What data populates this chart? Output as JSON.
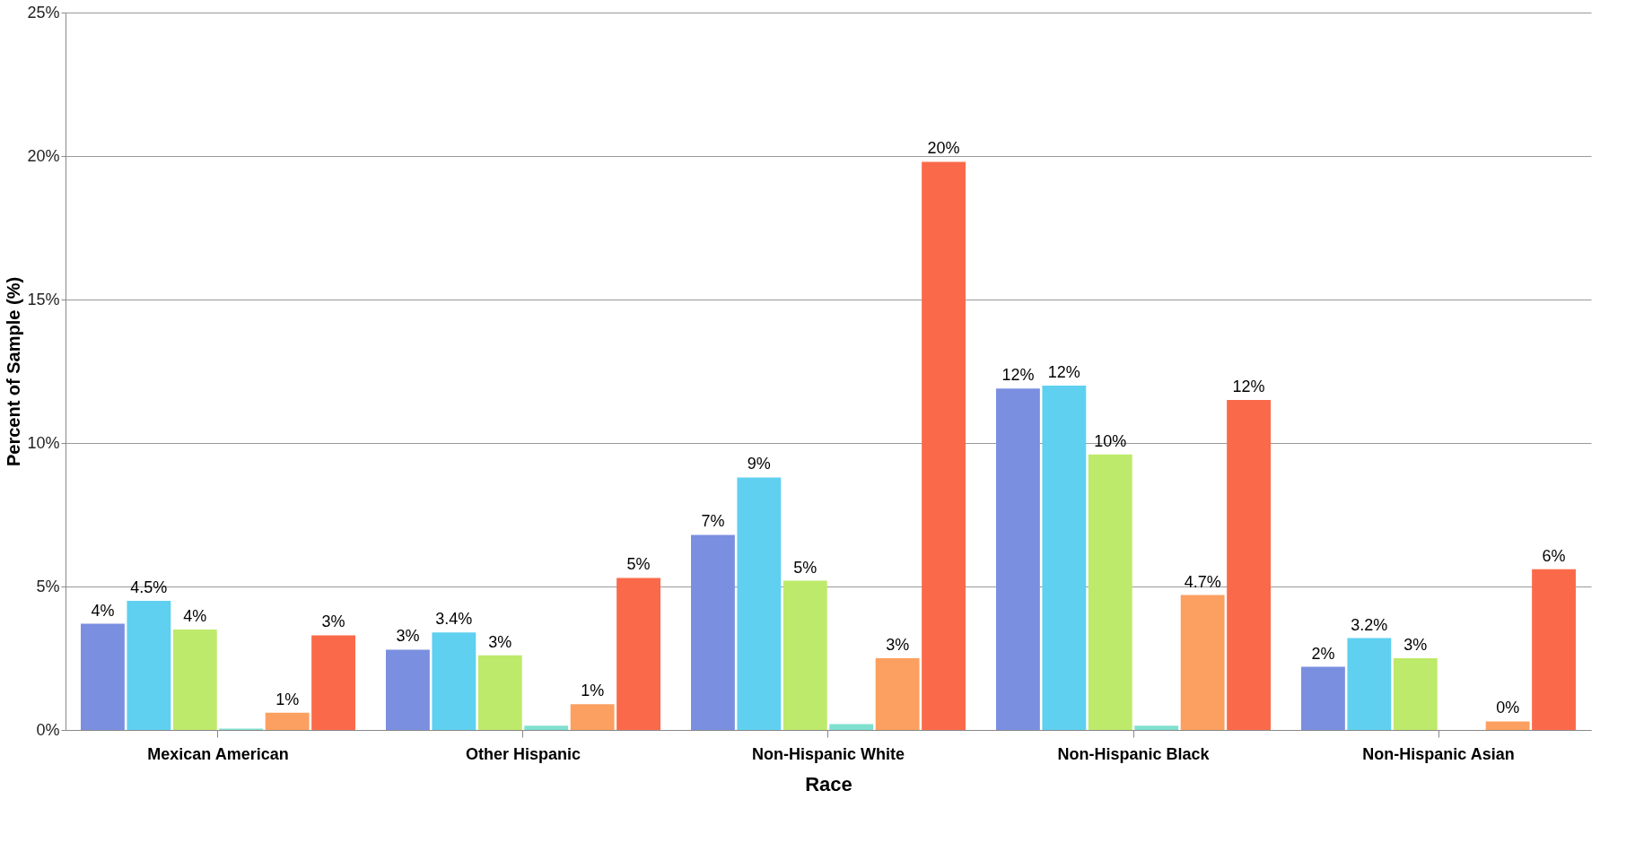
{
  "chart_data": {
    "type": "bar",
    "xlabel": "Race",
    "ylabel": "Percent of Sample (%)",
    "categories": [
      "Mexican American",
      "Other Hispanic",
      "Non-Hispanic White",
      "Non-Hispanic Black",
      "Non-Hispanic Asian"
    ],
    "series": [
      {
        "color": "#7b8fe0",
        "values": [
          3.7,
          2.8,
          6.8,
          11.9,
          2.2
        ],
        "value_labels": [
          "4%",
          "3%",
          "7%",
          "12%",
          "2%"
        ]
      },
      {
        "color": "#5fd0f0",
        "values": [
          4.5,
          3.4,
          8.8,
          12.0,
          3.2
        ],
        "value_labels": [
          "4.5%",
          "3.4%",
          "9%",
          "12%",
          "3.2%"
        ]
      },
      {
        "color": "#bdea6a",
        "values": [
          3.5,
          2.6,
          5.2,
          9.6,
          2.5
        ],
        "value_labels": [
          "4%",
          "3%",
          "5%",
          "10%",
          "3%"
        ]
      },
      {
        "color": "#7fe0d0",
        "values": [
          0.05,
          0.15,
          0.2,
          0.15,
          0.0
        ],
        "value_labels": [
          null,
          null,
          null,
          null,
          null
        ]
      },
      {
        "color": "#fba060",
        "values": [
          0.6,
          0.9,
          2.5,
          4.7,
          0.3
        ],
        "value_labels": [
          "1%",
          "1%",
          "3%",
          "4.7%",
          "0%"
        ]
      },
      {
        "color": "#fa6a4a",
        "values": [
          3.3,
          5.3,
          19.8,
          11.5,
          5.6
        ],
        "value_labels": [
          "3%",
          "5%",
          "20%",
          "12%",
          "6%"
        ]
      }
    ],
    "ylim": [
      0,
      25
    ],
    "yticks": [
      {
        "value": 0,
        "label": "0%"
      },
      {
        "value": 5,
        "label": "5%"
      },
      {
        "value": 10,
        "label": "10%"
      },
      {
        "value": 15,
        "label": "15%"
      },
      {
        "value": 20,
        "label": "20%"
      },
      {
        "value": 25,
        "label": "25%"
      }
    ],
    "grid": "y",
    "legend": false
  }
}
